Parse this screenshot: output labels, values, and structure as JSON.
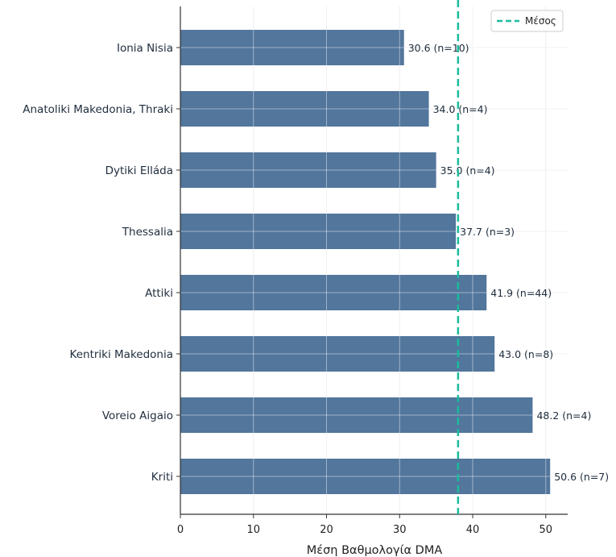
{
  "chart_data": {
    "type": "bar",
    "orientation": "horizontal",
    "title": "",
    "xlabel": "Μέση Βαθμολογία DMA",
    "ylabel": "",
    "xlim": [
      0,
      53
    ],
    "xticks": [
      0,
      10,
      20,
      30,
      40,
      50
    ],
    "grid": true,
    "categories": [
      "Ionia Nisia",
      "Anatoliki Makedonia, Thraki",
      "Dytiki Elláda",
      "Thessalia",
      "Attiki",
      "Kentriki Makedonia",
      "Voreio Aigaio",
      "Kriti"
    ],
    "values": [
      30.6,
      34.0,
      35.0,
      37.7,
      41.9,
      43.0,
      48.2,
      50.6
    ],
    "data_labels": [
      "30.6 (n=10)",
      "34.0 (n=4)",
      "35.0 (n=4)",
      "37.7 (n=3)",
      "41.9 (n=44)",
      "43.0 (n=8)",
      "48.2 (n=4)",
      "50.6 (n=7)"
    ],
    "reference_line": {
      "label": "Μέσος",
      "value": 38,
      "color": "#1abc9c",
      "style": "dashed"
    },
    "legend_position": "top-right",
    "bar_color": "#52769c"
  }
}
